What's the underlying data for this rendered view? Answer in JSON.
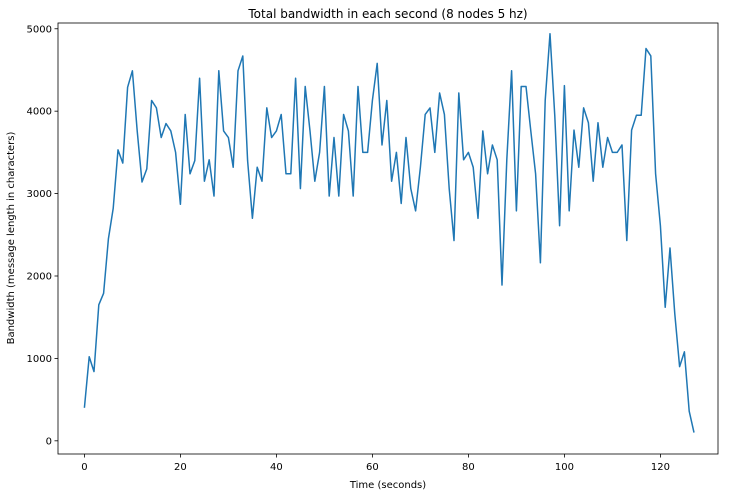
{
  "chart_data": {
    "type": "line",
    "title": "Total bandwidth in each second (8 nodes 5 hz)",
    "xlabel": "Time (seconds)",
    "ylabel": "Bandwidth (message length in characters)",
    "xlim": [
      -5.5,
      132
    ],
    "ylim": [
      -160,
      5070
    ],
    "xticks": [
      0,
      20,
      40,
      60,
      80,
      100,
      120
    ],
    "yticks": [
      0,
      1000,
      2000,
      3000,
      4000,
      5000
    ],
    "grid": false,
    "line_color": "#1f77b4",
    "series": [
      {
        "values": [
          400,
          1020,
          840,
          1650,
          1790,
          2450,
          2820,
          3530,
          3370,
          4290,
          4490,
          3760,
          3140,
          3300,
          4130,
          4040,
          3680,
          3850,
          3760,
          3500,
          2870,
          3960,
          3240,
          3400,
          4400,
          3150,
          3410,
          2970,
          4490,
          3760,
          3680,
          3320,
          4490,
          4670,
          3400,
          2700,
          3320,
          3150,
          4040,
          3680,
          3760,
          3960,
          3240,
          3240,
          4400,
          3060,
          4300,
          3760,
          3150,
          3500,
          4300,
          2970,
          3680,
          2970,
          3960,
          3760,
          2970,
          4300,
          3500,
          3500,
          4130,
          4580,
          3590,
          4130,
          3150,
          3500,
          2880,
          3680,
          3060,
          2790,
          3320,
          3960,
          4040,
          3500,
          4220,
          3960,
          3060,
          2430,
          4220,
          3410,
          3500,
          3320,
          2700,
          3760,
          3240,
          3590,
          3410,
          1890,
          3410,
          4490,
          2790,
          4300,
          4300,
          3760,
          3240,
          2160,
          4130,
          4940,
          3940,
          2610,
          4310,
          2790,
          3770,
          3320,
          4040,
          3860,
          3150,
          3860,
          3320,
          3680,
          3500,
          3500,
          3590,
          2430,
          3770,
          3950,
          3950,
          4760,
          4670,
          3240,
          2610,
          1620,
          2340,
          1540,
          900,
          1080,
          360,
          100
        ]
      }
    ]
  }
}
